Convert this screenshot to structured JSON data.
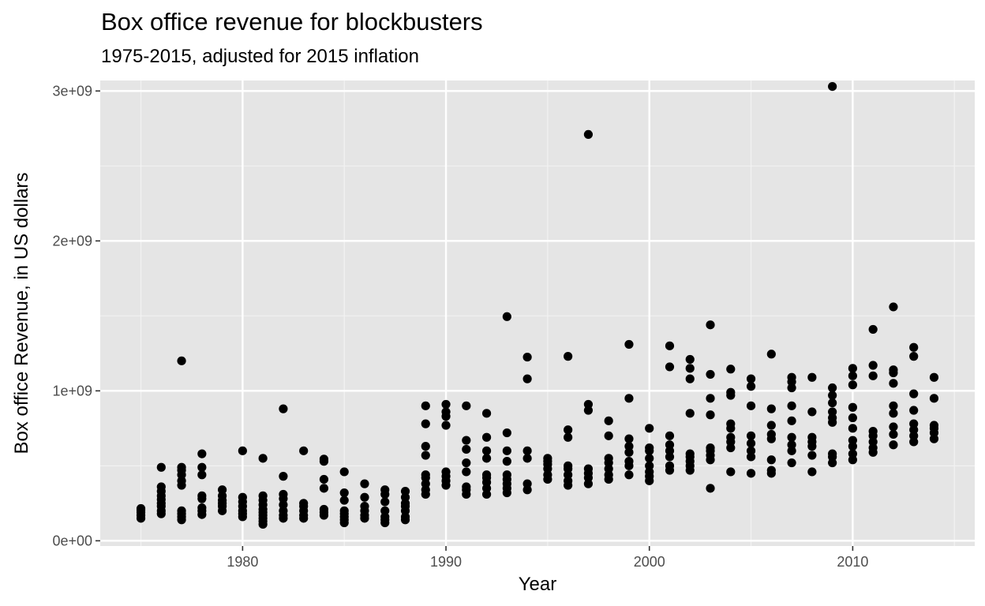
{
  "chart_data": {
    "type": "scatter",
    "title": "Box office revenue for blockbusters",
    "subtitle": "1975-2015, adjusted for 2015 inflation",
    "xlabel": "Year",
    "ylabel": "Box office Revenue, in US dollars",
    "xlim": [
      1973,
      2016
    ],
    "ylim": [
      -35000000,
      3070000000
    ],
    "x_ticks": [
      1980,
      1990,
      2000,
      2010
    ],
    "x_tick_labels": [
      "1980",
      "1990",
      "2000",
      "2010"
    ],
    "y_ticks": [
      0,
      1000000000,
      2000000000,
      3000000000
    ],
    "y_tick_labels": [
      "0e+00",
      "1e+09",
      "2e+09",
      "3e+09"
    ],
    "grid": true,
    "background": "#e5e5e5",
    "point_color": "#000000",
    "points": [
      [
        1975,
        150000000
      ],
      [
        1975,
        170000000
      ],
      [
        1975,
        190000000
      ],
      [
        1975,
        205000000
      ],
      [
        1975,
        215000000
      ],
      [
        1976,
        180000000
      ],
      [
        1976,
        200000000
      ],
      [
        1976,
        230000000
      ],
      [
        1976,
        250000000
      ],
      [
        1976,
        275000000
      ],
      [
        1976,
        300000000
      ],
      [
        1976,
        330000000
      ],
      [
        1976,
        360000000
      ],
      [
        1976,
        490000000
      ],
      [
        1977,
        140000000
      ],
      [
        1977,
        160000000
      ],
      [
        1977,
        180000000
      ],
      [
        1977,
        200000000
      ],
      [
        1977,
        370000000
      ],
      [
        1977,
        400000000
      ],
      [
        1977,
        440000000
      ],
      [
        1977,
        470000000
      ],
      [
        1977,
        490000000
      ],
      [
        1977,
        1200000000
      ],
      [
        1978,
        175000000
      ],
      [
        1978,
        200000000
      ],
      [
        1978,
        220000000
      ],
      [
        1978,
        280000000
      ],
      [
        1978,
        300000000
      ],
      [
        1978,
        440000000
      ],
      [
        1978,
        490000000
      ],
      [
        1978,
        580000000
      ],
      [
        1979,
        200000000
      ],
      [
        1979,
        230000000
      ],
      [
        1979,
        250000000
      ],
      [
        1979,
        270000000
      ],
      [
        1979,
        300000000
      ],
      [
        1979,
        340000000
      ],
      [
        1980,
        160000000
      ],
      [
        1980,
        180000000
      ],
      [
        1980,
        200000000
      ],
      [
        1980,
        230000000
      ],
      [
        1980,
        260000000
      ],
      [
        1980,
        290000000
      ],
      [
        1980,
        600000000
      ],
      [
        1981,
        110000000
      ],
      [
        1981,
        130000000
      ],
      [
        1981,
        150000000
      ],
      [
        1981,
        170000000
      ],
      [
        1981,
        190000000
      ],
      [
        1981,
        210000000
      ],
      [
        1981,
        240000000
      ],
      [
        1981,
        270000000
      ],
      [
        1981,
        300000000
      ],
      [
        1981,
        550000000
      ],
      [
        1982,
        150000000
      ],
      [
        1982,
        170000000
      ],
      [
        1982,
        200000000
      ],
      [
        1982,
        240000000
      ],
      [
        1982,
        280000000
      ],
      [
        1982,
        310000000
      ],
      [
        1982,
        430000000
      ],
      [
        1982,
        880000000
      ],
      [
        1983,
        150000000
      ],
      [
        1983,
        170000000
      ],
      [
        1983,
        200000000
      ],
      [
        1983,
        230000000
      ],
      [
        1983,
        250000000
      ],
      [
        1983,
        600000000
      ],
      [
        1984,
        170000000
      ],
      [
        1984,
        190000000
      ],
      [
        1984,
        210000000
      ],
      [
        1984,
        350000000
      ],
      [
        1984,
        410000000
      ],
      [
        1984,
        530000000
      ],
      [
        1984,
        545000000
      ],
      [
        1985,
        120000000
      ],
      [
        1985,
        140000000
      ],
      [
        1985,
        160000000
      ],
      [
        1985,
        180000000
      ],
      [
        1985,
        200000000
      ],
      [
        1985,
        270000000
      ],
      [
        1985,
        320000000
      ],
      [
        1985,
        460000000
      ],
      [
        1986,
        150000000
      ],
      [
        1986,
        170000000
      ],
      [
        1986,
        200000000
      ],
      [
        1986,
        230000000
      ],
      [
        1986,
        290000000
      ],
      [
        1986,
        380000000
      ],
      [
        1987,
        120000000
      ],
      [
        1987,
        140000000
      ],
      [
        1987,
        160000000
      ],
      [
        1987,
        200000000
      ],
      [
        1987,
        260000000
      ],
      [
        1987,
        310000000
      ],
      [
        1987,
        340000000
      ],
      [
        1988,
        140000000
      ],
      [
        1988,
        160000000
      ],
      [
        1988,
        200000000
      ],
      [
        1988,
        230000000
      ],
      [
        1988,
        250000000
      ],
      [
        1988,
        290000000
      ],
      [
        1988,
        330000000
      ],
      [
        1989,
        310000000
      ],
      [
        1989,
        340000000
      ],
      [
        1989,
        380000000
      ],
      [
        1989,
        420000000
      ],
      [
        1989,
        440000000
      ],
      [
        1989,
        570000000
      ],
      [
        1989,
        630000000
      ],
      [
        1989,
        780000000
      ],
      [
        1989,
        900000000
      ],
      [
        1990,
        370000000
      ],
      [
        1990,
        400000000
      ],
      [
        1990,
        430000000
      ],
      [
        1990,
        460000000
      ],
      [
        1990,
        770000000
      ],
      [
        1990,
        830000000
      ],
      [
        1990,
        860000000
      ],
      [
        1990,
        910000000
      ],
      [
        1991,
        310000000
      ],
      [
        1991,
        340000000
      ],
      [
        1991,
        360000000
      ],
      [
        1991,
        460000000
      ],
      [
        1991,
        520000000
      ],
      [
        1991,
        610000000
      ],
      [
        1991,
        670000000
      ],
      [
        1991,
        900000000
      ],
      [
        1992,
        310000000
      ],
      [
        1992,
        350000000
      ],
      [
        1992,
        390000000
      ],
      [
        1992,
        420000000
      ],
      [
        1992,
        440000000
      ],
      [
        1992,
        550000000
      ],
      [
        1992,
        600000000
      ],
      [
        1992,
        690000000
      ],
      [
        1992,
        850000000
      ],
      [
        1993,
        320000000
      ],
      [
        1993,
        350000000
      ],
      [
        1993,
        380000000
      ],
      [
        1993,
        410000000
      ],
      [
        1993,
        440000000
      ],
      [
        1993,
        530000000
      ],
      [
        1993,
        600000000
      ],
      [
        1993,
        720000000
      ],
      [
        1993,
        1495000000
      ],
      [
        1994,
        340000000
      ],
      [
        1994,
        380000000
      ],
      [
        1994,
        550000000
      ],
      [
        1994,
        600000000
      ],
      [
        1994,
        1080000000
      ],
      [
        1994,
        1225000000
      ],
      [
        1995,
        410000000
      ],
      [
        1995,
        440000000
      ],
      [
        1995,
        480000000
      ],
      [
        1995,
        510000000
      ],
      [
        1995,
        530000000
      ],
      [
        1995,
        550000000
      ],
      [
        1996,
        370000000
      ],
      [
        1996,
        400000000
      ],
      [
        1996,
        440000000
      ],
      [
        1996,
        480000000
      ],
      [
        1996,
        500000000
      ],
      [
        1996,
        690000000
      ],
      [
        1996,
        740000000
      ],
      [
        1996,
        1230000000
      ],
      [
        1997,
        380000000
      ],
      [
        1997,
        420000000
      ],
      [
        1997,
        450000000
      ],
      [
        1997,
        480000000
      ],
      [
        1997,
        870000000
      ],
      [
        1997,
        910000000
      ],
      [
        1997,
        2710000000
      ],
      [
        1998,
        410000000
      ],
      [
        1998,
        440000000
      ],
      [
        1998,
        480000000
      ],
      [
        1998,
        520000000
      ],
      [
        1998,
        550000000
      ],
      [
        1998,
        700000000
      ],
      [
        1998,
        800000000
      ],
      [
        1999,
        440000000
      ],
      [
        1999,
        500000000
      ],
      [
        1999,
        530000000
      ],
      [
        1999,
        590000000
      ],
      [
        1999,
        630000000
      ],
      [
        1999,
        680000000
      ],
      [
        1999,
        950000000
      ],
      [
        1999,
        1310000000
      ],
      [
        2000,
        400000000
      ],
      [
        2000,
        430000000
      ],
      [
        2000,
        460000000
      ],
      [
        2000,
        500000000
      ],
      [
        2000,
        550000000
      ],
      [
        2000,
        600000000
      ],
      [
        2000,
        620000000
      ],
      [
        2000,
        750000000
      ],
      [
        2001,
        470000000
      ],
      [
        2001,
        500000000
      ],
      [
        2001,
        560000000
      ],
      [
        2001,
        600000000
      ],
      [
        2001,
        640000000
      ],
      [
        2001,
        700000000
      ],
      [
        2001,
        1160000000
      ],
      [
        2001,
        1300000000
      ],
      [
        2002,
        470000000
      ],
      [
        2002,
        500000000
      ],
      [
        2002,
        530000000
      ],
      [
        2002,
        560000000
      ],
      [
        2002,
        580000000
      ],
      [
        2002,
        850000000
      ],
      [
        2002,
        1080000000
      ],
      [
        2002,
        1150000000
      ],
      [
        2002,
        1210000000
      ],
      [
        2003,
        350000000
      ],
      [
        2003,
        540000000
      ],
      [
        2003,
        570000000
      ],
      [
        2003,
        600000000
      ],
      [
        2003,
        620000000
      ],
      [
        2003,
        840000000
      ],
      [
        2003,
        950000000
      ],
      [
        2003,
        1110000000
      ],
      [
        2003,
        1440000000
      ],
      [
        2004,
        460000000
      ],
      [
        2004,
        620000000
      ],
      [
        2004,
        660000000
      ],
      [
        2004,
        690000000
      ],
      [
        2004,
        750000000
      ],
      [
        2004,
        780000000
      ],
      [
        2004,
        970000000
      ],
      [
        2004,
        990000000
      ],
      [
        2004,
        1145000000
      ],
      [
        2005,
        450000000
      ],
      [
        2005,
        560000000
      ],
      [
        2005,
        600000000
      ],
      [
        2005,
        650000000
      ],
      [
        2005,
        700000000
      ],
      [
        2005,
        900000000
      ],
      [
        2005,
        1030000000
      ],
      [
        2005,
        1080000000
      ],
      [
        2006,
        450000000
      ],
      [
        2006,
        470000000
      ],
      [
        2006,
        540000000
      ],
      [
        2006,
        680000000
      ],
      [
        2006,
        710000000
      ],
      [
        2006,
        770000000
      ],
      [
        2006,
        880000000
      ],
      [
        2006,
        1245000000
      ],
      [
        2007,
        520000000
      ],
      [
        2007,
        600000000
      ],
      [
        2007,
        640000000
      ],
      [
        2007,
        690000000
      ],
      [
        2007,
        800000000
      ],
      [
        2007,
        900000000
      ],
      [
        2007,
        1020000000
      ],
      [
        2007,
        1060000000
      ],
      [
        2007,
        1090000000
      ],
      [
        2008,
        460000000
      ],
      [
        2008,
        570000000
      ],
      [
        2008,
        630000000
      ],
      [
        2008,
        660000000
      ],
      [
        2008,
        690000000
      ],
      [
        2008,
        860000000
      ],
      [
        2008,
        1090000000
      ],
      [
        2009,
        520000000
      ],
      [
        2009,
        560000000
      ],
      [
        2009,
        580000000
      ],
      [
        2009,
        790000000
      ],
      [
        2009,
        820000000
      ],
      [
        2009,
        860000000
      ],
      [
        2009,
        920000000
      ],
      [
        2009,
        970000000
      ],
      [
        2009,
        1020000000
      ],
      [
        2009,
        3030000000
      ],
      [
        2010,
        540000000
      ],
      [
        2010,
        580000000
      ],
      [
        2010,
        630000000
      ],
      [
        2010,
        670000000
      ],
      [
        2010,
        750000000
      ],
      [
        2010,
        820000000
      ],
      [
        2010,
        890000000
      ],
      [
        2010,
        1040000000
      ],
      [
        2010,
        1100000000
      ],
      [
        2010,
        1150000000
      ],
      [
        2011,
        590000000
      ],
      [
        2011,
        620000000
      ],
      [
        2011,
        660000000
      ],
      [
        2011,
        700000000
      ],
      [
        2011,
        730000000
      ],
      [
        2011,
        1100000000
      ],
      [
        2011,
        1170000000
      ],
      [
        2011,
        1410000000
      ],
      [
        2012,
        640000000
      ],
      [
        2012,
        710000000
      ],
      [
        2012,
        760000000
      ],
      [
        2012,
        850000000
      ],
      [
        2012,
        900000000
      ],
      [
        2012,
        1050000000
      ],
      [
        2012,
        1120000000
      ],
      [
        2012,
        1140000000
      ],
      [
        2012,
        1560000000
      ],
      [
        2013,
        660000000
      ],
      [
        2013,
        700000000
      ],
      [
        2013,
        740000000
      ],
      [
        2013,
        780000000
      ],
      [
        2013,
        870000000
      ],
      [
        2013,
        980000000
      ],
      [
        2013,
        1230000000
      ],
      [
        2013,
        1290000000
      ],
      [
        2014,
        680000000
      ],
      [
        2014,
        720000000
      ],
      [
        2014,
        750000000
      ],
      [
        2014,
        770000000
      ],
      [
        2014,
        950000000
      ],
      [
        2014,
        1090000000
      ]
    ]
  }
}
